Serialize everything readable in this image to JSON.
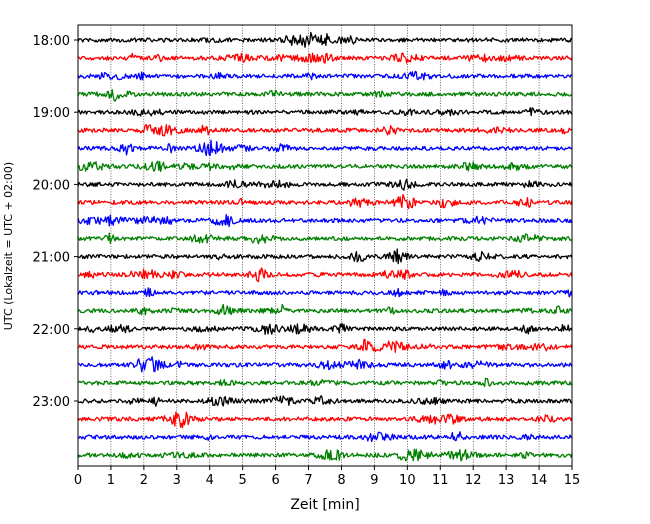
{
  "chart_data": {
    "type": "line",
    "title": "",
    "xlabel": "Zeit  [min]",
    "ylabel": "UTC (Lokalzeit = UTC + 02:00)",
    "xlim": [
      0,
      15
    ],
    "x_ticks": [
      "0",
      "1",
      "2",
      "3",
      "4",
      "5",
      "6",
      "7",
      "8",
      "9",
      "10",
      "11",
      "12",
      "13",
      "14",
      "15"
    ],
    "y_tick_labels": [
      "18:00",
      "19:00",
      "20:00",
      "21:00",
      "22:00",
      "23:00"
    ],
    "grid": "vertical-dotted",
    "color_cycle": [
      "#000000",
      "#ff0000",
      "#0000ff",
      "#008000"
    ],
    "traces": [
      "18:00",
      "18:15",
      "18:30",
      "18:45",
      "19:00",
      "19:15",
      "19:30",
      "19:45",
      "20:00",
      "20:15",
      "20:30",
      "20:45",
      "21:00",
      "21:15",
      "21:30",
      "21:45",
      "22:00",
      "22:15",
      "22:30",
      "22:45",
      "23:00",
      "23:15",
      "23:30",
      "23:45"
    ]
  }
}
